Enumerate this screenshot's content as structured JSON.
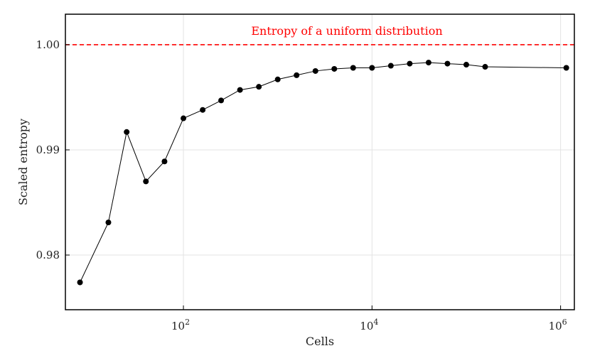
{
  "chart_data": {
    "type": "scatter",
    "title": "",
    "xlabel": "Cells",
    "ylabel": "Scaled entropy",
    "x_scale": "log10",
    "xlim": [
      5.6,
      1400000
    ],
    "ylim": [
      0.9748,
      1.0029
    ],
    "grid": true,
    "x_ticks": [
      {
        "value": 100,
        "base": "10",
        "exp": "2"
      },
      {
        "value": 10000,
        "base": "10",
        "exp": "4"
      },
      {
        "value": 1000000,
        "base": "10",
        "exp": "6"
      }
    ],
    "y_ticks": [
      {
        "value": 0.98,
        "label": "0.98"
      },
      {
        "value": 0.99,
        "label": "0.99"
      },
      {
        "value": 1.0,
        "label": "1.00"
      }
    ],
    "series": [
      {
        "color": "#000000",
        "line": true,
        "points": [
          {
            "x": 8,
            "y": 0.9774
          },
          {
            "x": 16,
            "y": 0.9831
          },
          {
            "x": 25,
            "y": 0.9917
          },
          {
            "x": 40,
            "y": 0.987
          },
          {
            "x": 63,
            "y": 0.9889
          },
          {
            "x": 100,
            "y": 0.993
          },
          {
            "x": 160,
            "y": 0.9938
          },
          {
            "x": 251,
            "y": 0.9947
          },
          {
            "x": 398,
            "y": 0.9957
          },
          {
            "x": 631,
            "y": 0.996
          },
          {
            "x": 1000,
            "y": 0.9967
          },
          {
            "x": 1585,
            "y": 0.9971
          },
          {
            "x": 2512,
            "y": 0.9975
          },
          {
            "x": 3981,
            "y": 0.9977
          },
          {
            "x": 6310,
            "y": 0.9978
          },
          {
            "x": 10000,
            "y": 0.9978
          },
          {
            "x": 15849,
            "y": 0.998
          },
          {
            "x": 25119,
            "y": 0.9982
          },
          {
            "x": 39811,
            "y": 0.9983
          },
          {
            "x": 63096,
            "y": 0.9982
          },
          {
            "x": 100000,
            "y": 0.9981
          },
          {
            "x": 158489,
            "y": 0.9979
          },
          {
            "x": 1150000,
            "y": 0.9978
          }
        ]
      }
    ],
    "reference_line": {
      "y": 1.0,
      "color": "#ff0000",
      "style": "dashed",
      "label": "Entropy of a uniform distribution"
    }
  }
}
